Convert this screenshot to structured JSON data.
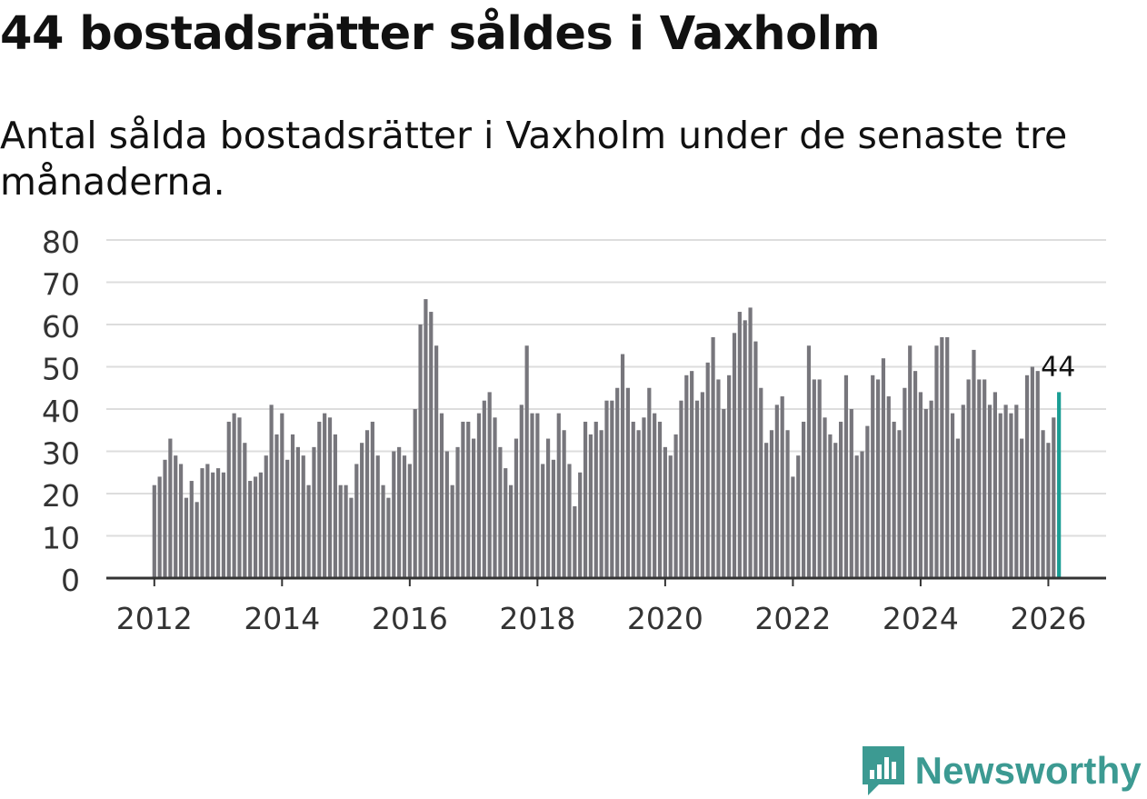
{
  "title": "44 bostadsrätter såldes i Vaxholm",
  "subtitle": "Antal sålda bostadsrätter i Vaxholm under de senaste tre månaderna.",
  "brand": {
    "name": "Newsworthy",
    "icon": "newsworthy-logo-icon"
  },
  "colors": {
    "bar": "#77767c",
    "highlight": "#1a9e94",
    "grid": "#dddddd",
    "axis": "#333333",
    "brand": "#3c9a92"
  },
  "chart_data": {
    "type": "bar",
    "title": "44 bostadsrätter såldes i Vaxholm",
    "xlabel": "",
    "ylabel": "",
    "ylim": [
      0,
      80
    ],
    "yticks": [
      0,
      10,
      20,
      30,
      40,
      50,
      60,
      70,
      80
    ],
    "xticks": [
      "2012",
      "2014",
      "2016",
      "2018",
      "2020",
      "2022",
      "2024",
      "2026"
    ],
    "start": "2012-01",
    "interval": "month",
    "highlight_label": "44",
    "values": [
      22,
      24,
      28,
      33,
      29,
      27,
      19,
      23,
      18,
      26,
      27,
      25,
      26,
      25,
      37,
      39,
      38,
      32,
      23,
      24,
      25,
      29,
      41,
      34,
      39,
      28,
      34,
      31,
      29,
      22,
      31,
      37,
      39,
      38,
      34,
      22,
      22,
      19,
      27,
      32,
      35,
      37,
      29,
      22,
      19,
      30,
      31,
      29,
      27,
      40,
      60,
      66,
      63,
      55,
      39,
      30,
      22,
      31,
      37,
      37,
      33,
      39,
      42,
      44,
      38,
      31,
      26,
      22,
      33,
      41,
      55,
      39,
      39,
      27,
      33,
      28,
      39,
      35,
      27,
      17,
      25,
      37,
      34,
      37,
      35,
      42,
      42,
      45,
      53,
      45,
      37,
      35,
      38,
      45,
      39,
      37,
      31,
      29,
      34,
      42,
      48,
      49,
      42,
      44,
      51,
      57,
      47,
      40,
      48,
      58,
      63,
      61,
      64,
      56,
      45,
      32,
      35,
      41,
      43,
      35,
      24,
      29,
      37,
      55,
      47,
      47,
      38,
      34,
      32,
      37,
      48,
      40,
      29,
      30,
      36,
      48,
      47,
      52,
      43,
      37,
      35,
      45,
      55,
      49,
      44,
      40,
      42,
      55,
      57,
      57,
      39,
      33,
      41,
      47,
      54,
      47,
      47,
      41,
      44,
      39,
      41,
      39,
      41,
      33,
      48,
      50,
      49,
      35,
      32,
      38,
      44
    ]
  }
}
